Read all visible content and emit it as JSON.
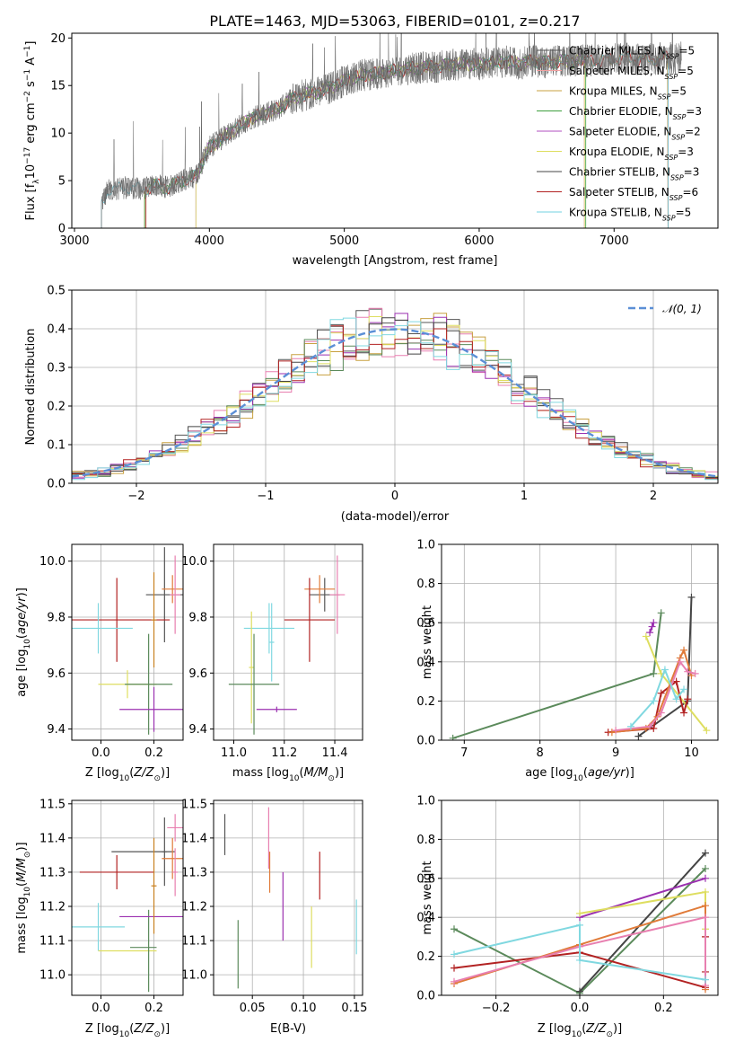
{
  "title": "PLATE=1463, MJD=53063, FIBERID=0101, z=0.217",
  "colors": [
    "#7f7f7f",
    "#e377c2",
    "#bcbd22",
    "#2ca02c",
    "#9467bd",
    "#dbdb8d",
    "#000000",
    "#d62728",
    "#17becf"
  ],
  "chart_data": [
    {
      "type": "line",
      "name": "spectrum",
      "xlabel": "wavelength [Angstrom, rest frame]",
      "ylabel": "Flux [f_λ 10^-17 erg cm^-2 s^-1 A^-1]",
      "xlim": [
        2980,
        7770
      ],
      "ylim": [
        0,
        20.5
      ],
      "xticks": [
        3000,
        4000,
        5000,
        6000,
        7000
      ],
      "yticks": [
        0,
        5,
        10,
        15,
        20
      ],
      "legend_loc": "upper right",
      "legend": [
        "Chabrier MILES, N_SSP=5",
        "Salpeter MILES, N_SSP=5",
        "Kroupa MILES, N_SSP=5",
        "Chabrier ELODIE, N_SSP=3",
        "Salpeter ELODIE, N_SSP=2",
        "Kroupa ELODIE, N_SSP=3",
        "Chabrier STELIB, N_SSP=3",
        "Salpeter STELIB, N_SSP=6",
        "Kroupa STELIB, N_SSP=5"
      ],
      "colors": [
        "#555555",
        "#f0a0a0",
        "#c8a040",
        "#3e9f3e",
        "#b04fc0",
        "#dede60",
        "#444444",
        "#b22222",
        "#70d0e0"
      ],
      "spectrum_anchor_x": [
        3200,
        3250,
        3400,
        3500,
        3600,
        3700,
        3800,
        3900,
        4000,
        4100,
        4200,
        4300,
        4400,
        4500,
        4600,
        4700,
        4800,
        4900,
        5000,
        5100,
        5200,
        5300,
        5400,
        5500,
        5600,
        5700,
        5800,
        5900,
        6000,
        6100,
        6200,
        6300,
        6400,
        6500,
        6600,
        6700,
        6800,
        6900,
        7000,
        7100,
        7200,
        7300,
        7400,
        7500
      ],
      "spectrum_anchor_y": [
        2.5,
        4.0,
        4.3,
        4.1,
        4.5,
        4.3,
        5.0,
        5.5,
        8.5,
        9.5,
        10.5,
        11.5,
        12.0,
        12.5,
        13.5,
        14.0,
        14.3,
        14.8,
        15.5,
        16.0,
        16.2,
        16.4,
        16.6,
        16.8,
        16.9,
        17.0,
        17.2,
        17.3,
        17.2,
        17.4,
        17.5,
        17.3,
        17.6,
        17.4,
        17.6,
        17.5,
        17.7,
        17.6,
        17.8,
        17.9,
        17.7,
        17.8,
        17.9,
        18.0
      ],
      "spectrum_ranges": [
        [
          3200,
          7500
        ],
        [
          3520,
          7400
        ],
        [
          3520,
          7400
        ],
        [
          3520,
          6790
        ],
        [
          3900,
          6780
        ],
        [
          3900,
          6780
        ],
        [
          3200,
          7500
        ],
        [
          3530,
          7400
        ],
        [
          3200,
          7400
        ]
      ]
    },
    {
      "type": "bar",
      "name": "residual histograms",
      "xlabel": "(data-model)/error",
      "ylabel": "Normed distribution",
      "xlim": [
        -2.5,
        2.5
      ],
      "ylim": [
        0,
        0.5
      ],
      "xticks": [
        -2,
        -1,
        0,
        1,
        2
      ],
      "yticks": [
        0.0,
        0.1,
        0.2,
        0.3,
        0.4,
        0.5
      ],
      "legend_loc": "upper right",
      "gauss_label": "𝒩(0, 1)",
      "bin_width": 0.1
    },
    {
      "type": "scatter",
      "name": "age vs Z",
      "xlabel": "Z [log10(Z/Z☉)]",
      "ylabel": "age  [log10(age/yr)]",
      "xlim": [
        -0.11,
        0.31
      ],
      "ylim": [
        9.36,
        10.06
      ],
      "xticks": [
        0.0,
        0.2
      ],
      "yticks": [
        9.4,
        9.6,
        9.8,
        10.0
      ],
      "points": [
        {
          "x": 0.24,
          "y": 9.88,
          "xerr": 0.07,
          "yerr": 0.17,
          "c": "#555555"
        },
        {
          "x": 0.27,
          "y": 9.9,
          "xerr": 0.04,
          "yerr": 0.05,
          "c": "#e07b39"
        },
        {
          "x": 0.28,
          "y": 9.88,
          "xerr": 0.02,
          "yerr": 0.14,
          "c": "#e87fb0"
        },
        {
          "x": 0.06,
          "y": 9.79,
          "xerr": 0.2,
          "yerr": 0.15,
          "c": "#b22222"
        },
        {
          "x": -0.01,
          "y": 9.76,
          "xerr": 0.13,
          "yerr": 0.09,
          "c": "#80d8e0"
        },
        {
          "x": 0.1,
          "y": 9.56,
          "xerr": 0.11,
          "yerr": 0.05,
          "c": "#dede60"
        },
        {
          "x": 0.18,
          "y": 9.56,
          "xerr": 0.09,
          "yerr": 0.18,
          "c": "#5b8a5b"
        },
        {
          "x": 0.2,
          "y": 9.47,
          "xerr": 0.13,
          "yerr": 0.08,
          "c": "#9b30b0"
        },
        {
          "x": 0.2,
          "y": 9.79,
          "xerr": 0.01,
          "yerr": 0.17,
          "c": "#c88020"
        }
      ]
    },
    {
      "type": "scatter",
      "name": "age vs mass",
      "xlabel": "mass [log10(M/M☉)]",
      "ylabel": "",
      "xlim": [
        10.92,
        11.51
      ],
      "ylim": [
        9.36,
        10.06
      ],
      "xticks": [
        11.0,
        11.2,
        11.4
      ],
      "yticks": [
        9.4,
        9.6,
        9.8,
        10.0
      ],
      "points": [
        {
          "x": 11.36,
          "y": 9.88,
          "xerr": 0.06,
          "yerr": 0.06,
          "c": "#555555"
        },
        {
          "x": 11.34,
          "y": 9.9,
          "xerr": 0.06,
          "yerr": 0.05,
          "c": "#e07b39"
        },
        {
          "x": 11.41,
          "y": 9.88,
          "xerr": 0.03,
          "yerr": 0.14,
          "c": "#e87fb0"
        },
        {
          "x": 11.3,
          "y": 9.79,
          "xerr": 0.1,
          "yerr": 0.15,
          "c": "#b22222"
        },
        {
          "x": 11.14,
          "y": 9.76,
          "xerr": 0.1,
          "yerr": 0.09,
          "c": "#80d8e0"
        },
        {
          "x": 11.07,
          "y": 9.62,
          "xerr": 0.01,
          "yerr": 0.2,
          "c": "#dede60"
        },
        {
          "x": 11.08,
          "y": 9.56,
          "xerr": 0.1,
          "yerr": 0.18,
          "c": "#5b8a5b"
        },
        {
          "x": 11.17,
          "y": 9.47,
          "xerr": 0.08,
          "yerr": 0.01,
          "c": "#9b30b0"
        },
        {
          "x": 11.15,
          "y": 9.71,
          "xerr": 0.01,
          "yerr": 0.14,
          "c": "#80d8e0"
        }
      ]
    },
    {
      "type": "line",
      "name": "mass weight vs age",
      "xlabel": "age  [log10(age/yr)]",
      "ylabel": "mass weight",
      "xlim": [
        6.7,
        10.35
      ],
      "ylim": [
        0,
        1.0
      ],
      "xticks": [
        7,
        8,
        9,
        10
      ],
      "yticks": [
        0.0,
        0.2,
        0.4,
        0.6,
        0.8,
        1.0
      ],
      "lines": [
        {
          "c": "#5b8a5b",
          "x": [
            6.85,
            9.5,
            9.6
          ],
          "y": [
            0.01,
            0.34,
            0.65
          ]
        },
        {
          "c": "#444444",
          "x": [
            9.3,
            9.95,
            10.0
          ],
          "y": [
            0.02,
            0.2,
            0.73
          ]
        },
        {
          "c": "#9b30b0",
          "x": [
            9.45,
            9.48,
            9.5
          ],
          "y": [
            0.55,
            0.58,
            0.6
          ]
        },
        {
          "c": "#dede60",
          "x": [
            9.4,
            9.6,
            10.2
          ],
          "y": [
            0.53,
            0.34,
            0.05
          ]
        },
        {
          "c": "#b22222",
          "x": [
            8.9,
            9.5,
            9.6,
            9.8,
            9.9,
            9.95
          ],
          "y": [
            0.04,
            0.06,
            0.24,
            0.3,
            0.14,
            0.21
          ]
        },
        {
          "c": "#e07b39",
          "x": [
            8.95,
            9.4,
            9.55,
            9.85,
            9.9,
            10.0
          ],
          "y": [
            0.04,
            0.06,
            0.12,
            0.42,
            0.46,
            0.33
          ]
        },
        {
          "c": "#e87fb0",
          "x": [
            9.0,
            9.45,
            9.6,
            9.85,
            9.95,
            10.05
          ],
          "y": [
            0.05,
            0.07,
            0.14,
            0.4,
            0.35,
            0.34
          ]
        },
        {
          "c": "#80d8e0",
          "x": [
            9.2,
            9.5,
            9.65,
            9.8,
            9.9
          ],
          "y": [
            0.07,
            0.2,
            0.36,
            0.21,
            0.26
          ]
        }
      ]
    },
    {
      "type": "scatter",
      "name": "mass vs Z",
      "xlabel": "Z [log10(Z/Z☉)]",
      "ylabel": "mass [log10(M/M☉)]",
      "xlim": [
        -0.11,
        0.31
      ],
      "ylim": [
        10.94,
        11.51
      ],
      "xticks": [
        0.0,
        0.2
      ],
      "yticks": [
        11.0,
        11.1,
        11.2,
        11.3,
        11.4,
        11.5
      ],
      "points": [
        {
          "x": 0.16,
          "y": 11.36,
          "xerr": 0.12,
          "yerr": 0.0,
          "c": "#555555"
        },
        {
          "x": 0.24,
          "y": 11.36,
          "xerr": 0.01,
          "yerr": 0.1,
          "c": "#555555"
        },
        {
          "x": 0.27,
          "y": 11.34,
          "xerr": 0.04,
          "yerr": 0.06,
          "c": "#e07b39"
        },
        {
          "x": 0.28,
          "y": 11.43,
          "xerr": 0.03,
          "yerr": 0.04,
          "c": "#e87fb0"
        },
        {
          "x": 0.28,
          "y": 11.3,
          "xerr": 0.01,
          "yerr": 0.07,
          "c": "#e87fb0"
        },
        {
          "x": 0.06,
          "y": 11.3,
          "xerr": 0.14,
          "yerr": 0.05,
          "c": "#b22222"
        },
        {
          "x": -0.01,
          "y": 11.14,
          "xerr": 0.1,
          "yerr": 0.07,
          "c": "#80d8e0"
        },
        {
          "x": 0.1,
          "y": 11.07,
          "xerr": 0.11,
          "yerr": 0.0,
          "c": "#dede60"
        },
        {
          "x": 0.18,
          "y": 11.07,
          "xerr": 0.0,
          "yerr": 0.12,
          "c": "#5b8a5b"
        },
        {
          "x": 0.16,
          "y": 11.08,
          "xerr": 0.05,
          "yerr": 0.0,
          "c": "#5b8a5b"
        },
        {
          "x": 0.2,
          "y": 11.17,
          "xerr": 0.13,
          "yerr": 0.0,
          "c": "#9b30b0"
        },
        {
          "x": 0.2,
          "y": 11.26,
          "xerr": 0.01,
          "yerr": 0.14,
          "c": "#c88020"
        }
      ]
    },
    {
      "type": "scatter",
      "name": "mass vs E(B-V)",
      "xlabel": "E(B-V)",
      "ylabel": "",
      "xlim": [
        0.012,
        0.158
      ],
      "ylim": [
        10.94,
        11.51
      ],
      "xticks": [
        0.05,
        0.1,
        0.15
      ],
      "yticks": [
        11.0,
        11.1,
        11.2,
        11.3,
        11.4,
        11.5
      ],
      "points": [
        {
          "x": 0.023,
          "y": 11.41,
          "xerr": 0.0,
          "yerr": 0.06,
          "c": "#555555"
        },
        {
          "x": 0.036,
          "y": 11.06,
          "xerr": 0.0,
          "yerr": 0.1,
          "c": "#5b8a5b"
        },
        {
          "x": 0.066,
          "y": 11.4,
          "xerr": 0.0,
          "yerr": 0.09,
          "c": "#e87fb0"
        },
        {
          "x": 0.067,
          "y": 11.3,
          "xerr": 0.0,
          "yerr": 0.06,
          "c": "#e07b39"
        },
        {
          "x": 0.08,
          "y": 11.2,
          "xerr": 0.0,
          "yerr": 0.1,
          "c": "#9b30b0"
        },
        {
          "x": 0.108,
          "y": 11.11,
          "xerr": 0.0,
          "yerr": 0.09,
          "c": "#dede60"
        },
        {
          "x": 0.116,
          "y": 11.29,
          "xerr": 0.0,
          "yerr": 0.07,
          "c": "#b22222"
        },
        {
          "x": 0.152,
          "y": 11.14,
          "xerr": 0.0,
          "yerr": 0.08,
          "c": "#80d8e0"
        }
      ]
    },
    {
      "type": "line",
      "name": "mass weight vs Z",
      "xlabel": "Z [log10(Z/Z☉)]",
      "ylabel": "mass weight",
      "xlim": [
        -0.33,
        0.33
      ],
      "ylim": [
        0,
        1.0
      ],
      "xticks": [
        -0.2,
        0.0,
        0.2
      ],
      "yticks": [
        0.0,
        0.2,
        0.4,
        0.6,
        0.8,
        1.0
      ],
      "lines": [
        {
          "c": "#5b8a5b",
          "x": [
            -0.3,
            0.0,
            0.3
          ],
          "y": [
            0.34,
            0.01,
            0.65
          ]
        },
        {
          "c": "#444444",
          "x": [
            0.0,
            0.3
          ],
          "y": [
            0.02,
            0.73
          ]
        },
        {
          "c": "#9b30b0",
          "x": [
            0.0,
            0.3
          ],
          "y": [
            0.4,
            0.6
          ]
        },
        {
          "c": "#dede60",
          "x": [
            0.0,
            0.3,
            0.3
          ],
          "y": [
            0.42,
            0.53,
            0.34
          ]
        },
        {
          "c": "#b22222",
          "x": [
            -0.3,
            0.0,
            0.3,
            0.3,
            0.3
          ],
          "y": [
            0.14,
            0.22,
            0.04,
            0.3,
            0.12
          ]
        },
        {
          "c": "#e07b39",
          "x": [
            -0.3,
            0.0,
            0.3,
            0.3
          ],
          "y": [
            0.06,
            0.26,
            0.46,
            0.03
          ]
        },
        {
          "c": "#e87fb0",
          "x": [
            -0.3,
            0.0,
            0.3,
            0.3
          ],
          "y": [
            0.07,
            0.25,
            0.4,
            0.05
          ]
        },
        {
          "c": "#80d8e0",
          "x": [
            -0.3,
            0.0,
            0.0,
            0.3
          ],
          "y": [
            0.21,
            0.36,
            0.18,
            0.08
          ]
        }
      ]
    }
  ]
}
